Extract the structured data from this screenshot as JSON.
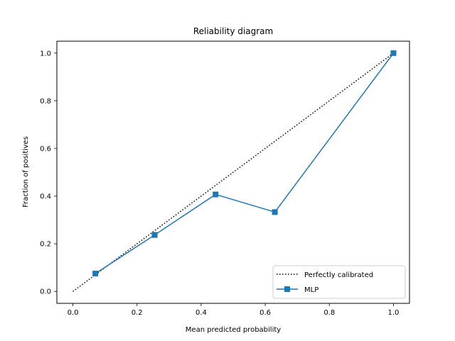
{
  "chart_data": {
    "type": "line",
    "title": "Reliability diagram",
    "xlabel": "Mean predicted probability",
    "ylabel": "Fraction of positives",
    "xlim": [
      -0.05,
      1.05
    ],
    "ylim": [
      -0.05,
      1.05
    ],
    "xticks": [
      0.0,
      0.2,
      0.4,
      0.6,
      0.8,
      1.0
    ],
    "yticks": [
      0.0,
      0.2,
      0.4,
      0.6,
      0.8,
      1.0
    ],
    "xtick_labels": [
      "0.0",
      "0.2",
      "0.4",
      "0.6",
      "0.8",
      "1.0"
    ],
    "ytick_labels": [
      "0.0",
      "0.2",
      "0.4",
      "0.6",
      "0.8",
      "1.0"
    ],
    "grid": false,
    "legend_position": "lower-right",
    "series": [
      {
        "name": "Perfectly calibrated",
        "style": "dotted",
        "color": "#000000",
        "x": [
          0,
          1
        ],
        "y": [
          0,
          1
        ]
      },
      {
        "name": "MLP",
        "style": "solid",
        "marker": "square",
        "color": "#1f77b4",
        "x": [
          0.07,
          0.255,
          0.445,
          0.63,
          1.0
        ],
        "y": [
          0.075,
          0.237,
          0.407,
          0.333,
          1.0
        ]
      }
    ]
  }
}
